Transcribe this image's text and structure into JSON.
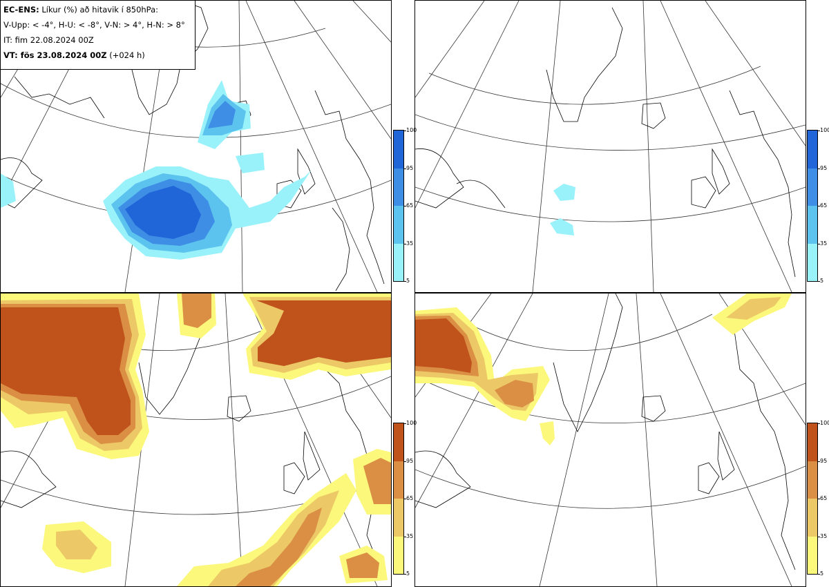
{
  "legend": {
    "line1_bold": "EC-ENS:",
    "line1_rest": " Líkur (%) að hitavik í 850hPa:",
    "line2": "V-Upp: < -4°, H-U: < -8°, V-N: > 4°, H-N: > 8°",
    "line3": "IT: fim 22.08.2024 00Z",
    "line4_bold": "VT: fös 23.08.2024 00Z",
    "line4_rest": " (+024 h)"
  },
  "colorbar_cold": {
    "ticks": [
      "100",
      "95",
      "65",
      "35",
      "5"
    ],
    "colors": [
      "#2166d8",
      "#3f8ee6",
      "#5cc3ee",
      "#99f2fa"
    ]
  },
  "colorbar_warm": {
    "ticks": [
      "100",
      "95",
      "65",
      "35",
      "5"
    ],
    "colors": [
      "#c0521c",
      "#da8f44",
      "#ecc866",
      "#fbf87c"
    ]
  },
  "panels": [
    {
      "id": "V-Upp",
      "palette": "cold"
    },
    {
      "id": "H-U",
      "palette": "cold"
    },
    {
      "id": "V-N",
      "palette": "warm"
    },
    {
      "id": "H-N",
      "palette": "warm"
    }
  ]
}
